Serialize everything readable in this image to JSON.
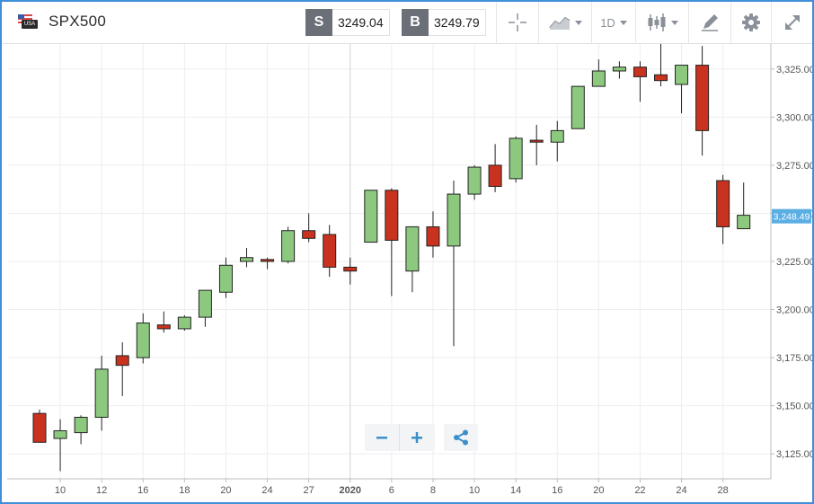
{
  "instrument": {
    "symbol": "SPX500",
    "flag_icon": "us-flag-icon"
  },
  "prices": {
    "sell_key": "S",
    "sell_value": "3249.04",
    "buy_key": "B",
    "buy_value": "3249.79"
  },
  "toolbar": {
    "timeframe_label": "1D"
  },
  "colors": {
    "up": "#8cc97f",
    "down": "#c8321e",
    "current_price_bg": "#5aaee3",
    "grid": "#eceef0"
  },
  "chart_data": {
    "type": "candlestick",
    "ylim": [
      3112,
      3338
    ],
    "y_ticks": [
      3125,
      3150,
      3175,
      3200,
      3225,
      3250,
      3275,
      3300,
      3325
    ],
    "y_tick_labels": [
      "3,125.00",
      "3,150.00",
      "3,175.00",
      "3,200.00",
      "3,225.00",
      "3,250.00",
      "3,275.00",
      "3,300.00",
      "3,325.00"
    ],
    "x_tick_labels": [
      "10",
      "12",
      "16",
      "18",
      "20",
      "24",
      "27",
      "2020",
      "6",
      "8",
      "10",
      "14",
      "16",
      "20",
      "22",
      "24",
      "28"
    ],
    "x_tick_index": [
      1,
      3,
      5,
      7,
      9,
      11,
      13,
      15,
      17,
      19,
      21,
      23,
      25,
      27,
      29,
      31,
      33
    ],
    "current_price": 3248.49,
    "current_price_label": "3,248.49",
    "candles": [
      {
        "o": 3146,
        "h": 3148,
        "l": 3131,
        "c": 3131
      },
      {
        "o": 3133,
        "h": 3143,
        "l": 3116,
        "c": 3137
      },
      {
        "o": 3136,
        "h": 3145,
        "l": 3130,
        "c": 3144
      },
      {
        "o": 3144,
        "h": 3176,
        "l": 3137,
        "c": 3169
      },
      {
        "o": 3176,
        "h": 3183,
        "l": 3155,
        "c": 3171
      },
      {
        "o": 3175,
        "h": 3198,
        "l": 3172,
        "c": 3193
      },
      {
        "o": 3192,
        "h": 3199,
        "l": 3188,
        "c": 3190
      },
      {
        "o": 3190,
        "h": 3197,
        "l": 3189,
        "c": 3196
      },
      {
        "o": 3196,
        "h": 3210,
        "l": 3191,
        "c": 3210
      },
      {
        "o": 3209,
        "h": 3227,
        "l": 3206,
        "c": 3223
      },
      {
        "o": 3225,
        "h": 3232,
        "l": 3222,
        "c": 3227
      },
      {
        "o": 3226,
        "h": 3227,
        "l": 3221,
        "c": 3225
      },
      {
        "o": 3225,
        "h": 3243,
        "l": 3224,
        "c": 3241
      },
      {
        "o": 3241,
        "h": 3250,
        "l": 3235,
        "c": 3237
      },
      {
        "o": 3239,
        "h": 3244,
        "l": 3217,
        "c": 3222
      },
      {
        "o": 3222,
        "h": 3227,
        "l": 3213,
        "c": 3220
      },
      {
        "o": 3235,
        "h": 3262,
        "l": 3235,
        "c": 3262
      },
      {
        "o": 3262,
        "h": 3263,
        "l": 3207,
        "c": 3236
      },
      {
        "o": 3220,
        "h": 3243,
        "l": 3209,
        "c": 3243
      },
      {
        "o": 3243,
        "h": 3251,
        "l": 3227,
        "c": 3233
      },
      {
        "o": 3233,
        "h": 3267,
        "l": 3181,
        "c": 3260
      },
      {
        "o": 3260,
        "h": 3275,
        "l": 3257,
        "c": 3274
      },
      {
        "o": 3275,
        "h": 3286,
        "l": 3261,
        "c": 3264
      },
      {
        "o": 3268,
        "h": 3290,
        "l": 3266,
        "c": 3289
      },
      {
        "o": 3288,
        "h": 3296,
        "l": 3275,
        "c": 3287
      },
      {
        "o": 3287,
        "h": 3298,
        "l": 3277,
        "c": 3293
      },
      {
        "o": 3294,
        "h": 3316,
        "l": 3294,
        "c": 3316
      },
      {
        "o": 3316,
        "h": 3330,
        "l": 3316,
        "c": 3324
      },
      {
        "o": 3324,
        "h": 3329,
        "l": 3320,
        "c": 3326
      },
      {
        "o": 3326,
        "h": 3329,
        "l": 3308,
        "c": 3321
      },
      {
        "o": 3322,
        "h": 3338,
        "l": 3316,
        "c": 3319
      },
      {
        "o": 3317,
        "h": 3327,
        "l": 3302,
        "c": 3327
      },
      {
        "o": 3327,
        "h": 3337,
        "l": 3280,
        "c": 3293
      },
      {
        "o": 3267,
        "h": 3270,
        "l": 3234,
        "c": 3243
      },
      {
        "o": 3242,
        "h": 3266,
        "l": 3242,
        "c": 3249
      }
    ]
  }
}
